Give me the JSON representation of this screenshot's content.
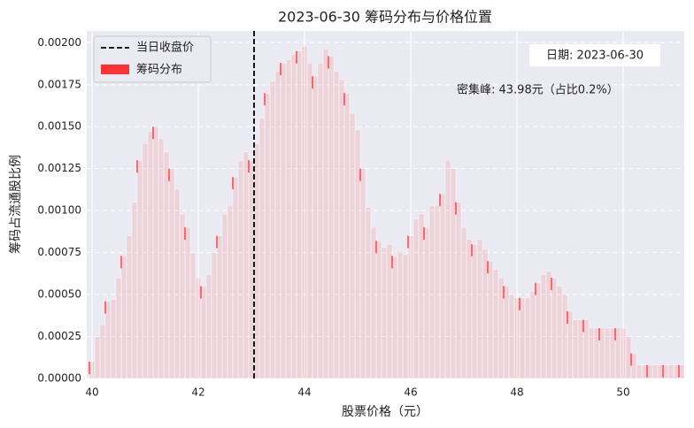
{
  "chart_data": {
    "type": "bar",
    "title": "2023-06-30 筹码分布与价格位置",
    "xlabel": "股票价格（元）",
    "ylabel": "筹码占流通股比例",
    "series": [
      {
        "name": "筹码分布",
        "color": "#ff3333",
        "x": [
          40.0,
          40.1,
          40.2,
          40.3,
          40.4,
          40.5,
          40.6,
          40.7,
          40.8,
          40.9,
          41.0,
          41.1,
          41.2,
          41.3,
          41.4,
          41.5,
          41.6,
          41.7,
          41.8,
          41.9,
          42.0,
          42.1,
          42.2,
          42.3,
          42.4,
          42.5,
          42.6,
          42.7,
          42.8,
          42.9,
          43.0,
          43.1,
          43.2,
          43.3,
          43.4,
          43.5,
          43.6,
          43.7,
          43.8,
          43.9,
          44.0,
          44.1,
          44.2,
          44.3,
          44.4,
          44.5,
          44.6,
          44.7,
          44.8,
          44.9,
          45.0,
          45.1,
          45.2,
          45.3,
          45.4,
          45.5,
          45.6,
          45.7,
          45.8,
          45.9,
          46.0,
          46.1,
          46.2,
          46.3,
          46.4,
          46.5,
          46.6,
          46.7,
          46.8,
          46.9,
          47.0,
          47.1,
          47.2,
          47.3,
          47.4,
          47.5,
          47.6,
          47.7,
          47.8,
          47.9,
          48.0,
          48.1,
          48.2,
          48.3,
          48.4,
          48.5,
          48.6,
          48.7,
          48.8,
          48.9,
          49.0,
          49.1,
          49.2,
          49.3,
          49.4,
          49.5,
          49.6,
          49.7,
          49.8,
          49.9,
          50.0,
          50.1,
          50.2,
          50.3,
          50.4,
          50.5,
          50.6,
          50.7,
          50.8,
          50.9,
          51.0,
          51.1
        ],
        "values": [
          0.0001,
          0.00025,
          0.00032,
          0.00046,
          0.00047,
          0.0006,
          0.00073,
          0.00085,
          0.00105,
          0.0013,
          0.0014,
          0.00147,
          0.0015,
          0.00143,
          0.00135,
          0.00125,
          0.00113,
          0.00098,
          0.0009,
          0.00075,
          0.0006,
          0.00055,
          0.00062,
          0.00075,
          0.00085,
          0.00098,
          0.00103,
          0.0012,
          0.0013,
          0.00135,
          0.0013,
          0.0014,
          0.00155,
          0.0017,
          0.00177,
          0.00183,
          0.00188,
          0.0019,
          0.00193,
          0.00195,
          0.00198,
          0.00188,
          0.0018,
          0.00188,
          0.00196,
          0.00192,
          0.00183,
          0.00178,
          0.0017,
          0.00158,
          0.00148,
          0.00125,
          0.00102,
          0.0009,
          0.00082,
          0.00078,
          0.0008,
          0.00073,
          0.00076,
          0.00074,
          0.00085,
          0.00095,
          0.00098,
          0.0009,
          0.00103,
          0.00103,
          0.0011,
          0.0013,
          0.00125,
          0.00105,
          0.0009,
          0.00083,
          0.0008,
          0.00083,
          0.00077,
          0.0007,
          0.00065,
          0.0006,
          0.00055,
          0.0005,
          0.00048,
          0.00048,
          0.00048,
          0.00052,
          0.00057,
          0.00062,
          0.00064,
          0.0006,
          0.00055,
          0.0005,
          0.0004,
          0.00035,
          0.00035,
          0.00035,
          0.0003,
          0.0003,
          0.0003,
          0.0003,
          0.0003,
          0.0003,
          0.0003,
          0.00025,
          0.00015,
          8e-05,
          8e-05,
          8e-05,
          8e-05,
          8e-05,
          8e-05,
          8e-05,
          8e-05,
          8e-05
        ]
      }
    ],
    "reference_lines": [
      {
        "name": "当日收盘价",
        "x": 43.05,
        "color": "#000000",
        "style": "dashed"
      }
    ],
    "annotations": [
      "日期: 2023-06-30",
      "密集峰: 43.98元（占比0.2%）"
    ],
    "xlim": [
      39.9,
      51.15
    ],
    "ylim": [
      0,
      0.00207
    ],
    "xticks": [
      40,
      42,
      44,
      46,
      48,
      50
    ],
    "yticks": [
      {
        "value": 0,
        "label": "0.00000"
      },
      {
        "value": 0.00025,
        "label": "0.00025"
      },
      {
        "value": 0.0005,
        "label": "0.00050"
      },
      {
        "value": 0.00075,
        "label": "0.00075"
      },
      {
        "value": 0.001,
        "label": "0.00100"
      },
      {
        "value": 0.00125,
        "label": "0.00125"
      },
      {
        "value": 0.0015,
        "label": "0.00150"
      },
      {
        "value": 0.00175,
        "label": "0.00175"
      },
      {
        "value": 0.002,
        "label": "0.00200"
      }
    ],
    "grid": true,
    "legend": "upper left"
  }
}
